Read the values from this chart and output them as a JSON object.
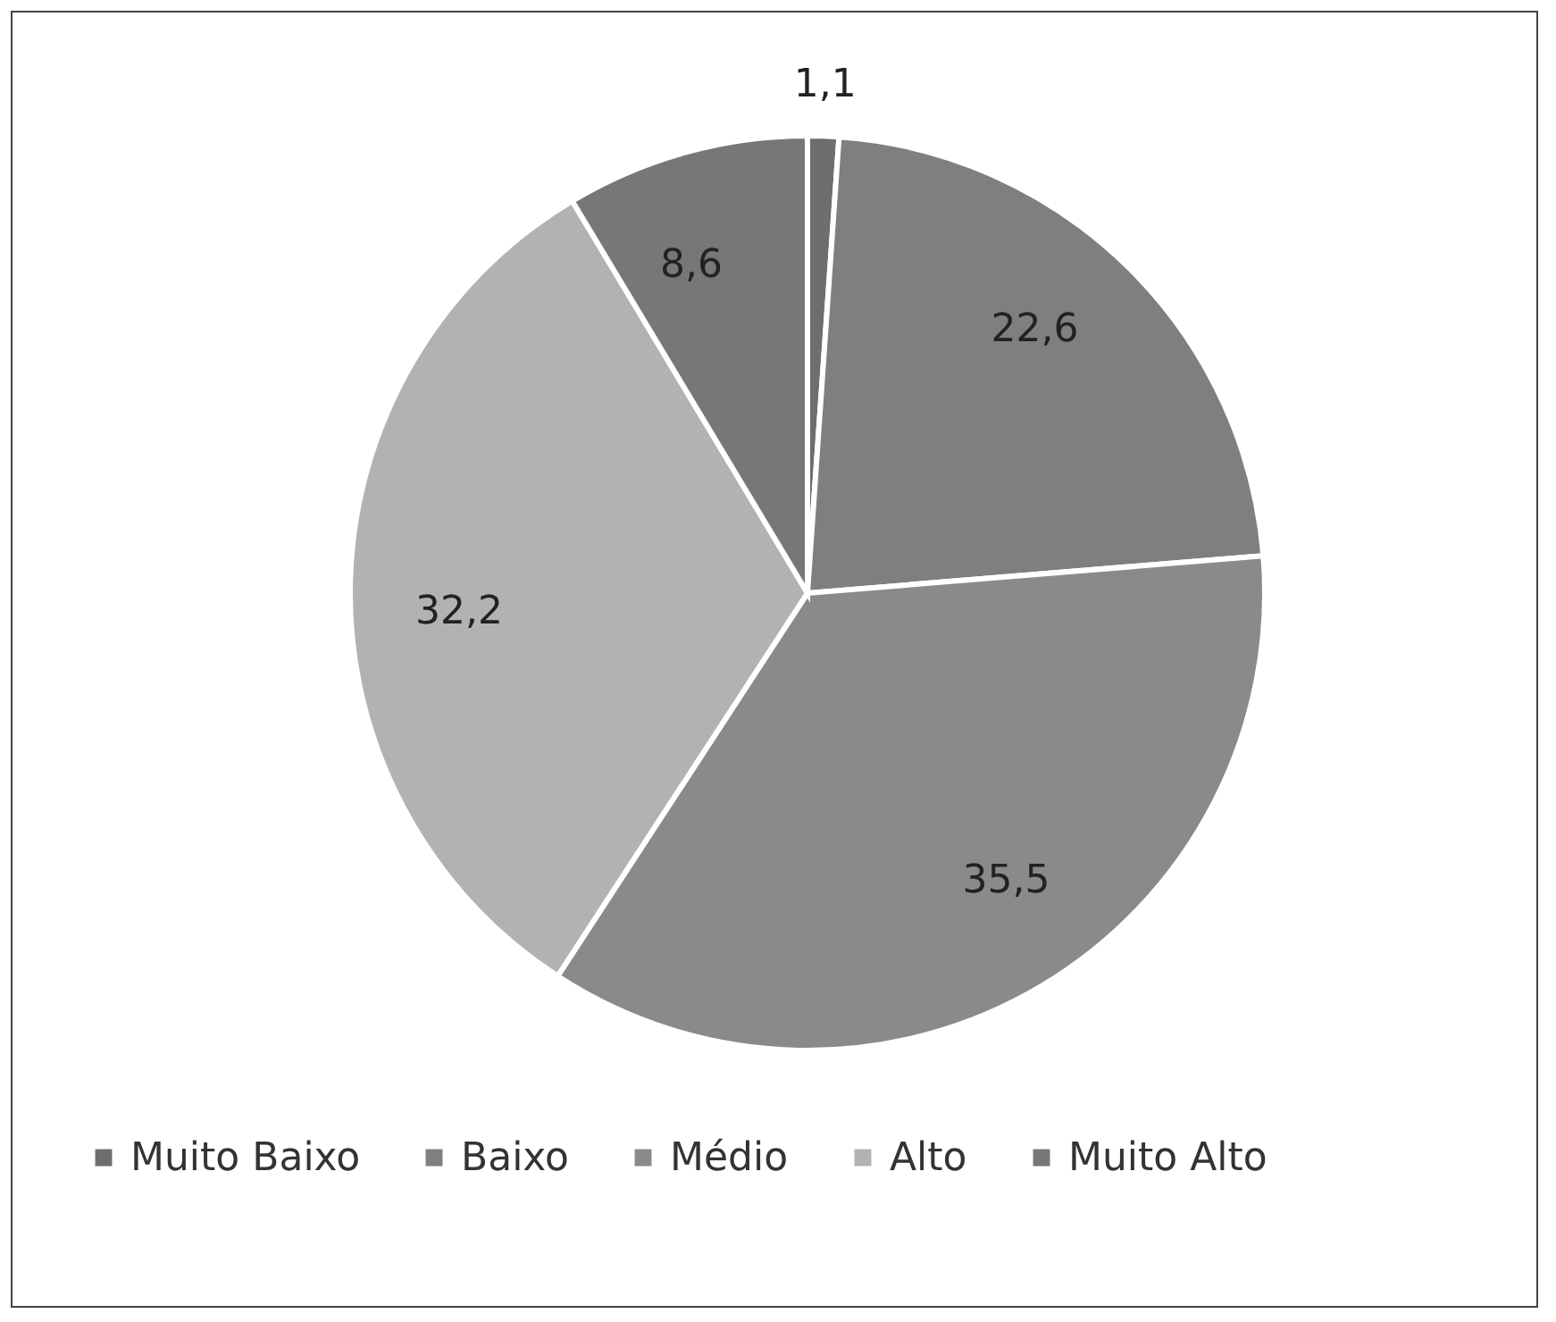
{
  "chart_data": {
    "type": "pie",
    "categories": [
      "Muito Baixo",
      "Baixo",
      "Médio",
      "Alto",
      "Muito Alto"
    ],
    "values": [
      1.1,
      22.6,
      35.5,
      32.2,
      8.6
    ],
    "value_labels": [
      "1,1",
      "22,6",
      "35,5",
      "32,2",
      "8,6"
    ],
    "colors": [
      "#6e6e6e",
      "#7f7f7f",
      "#8a8a8a",
      "#b2b2b2",
      "#777777"
    ],
    "legend": "bottom"
  }
}
